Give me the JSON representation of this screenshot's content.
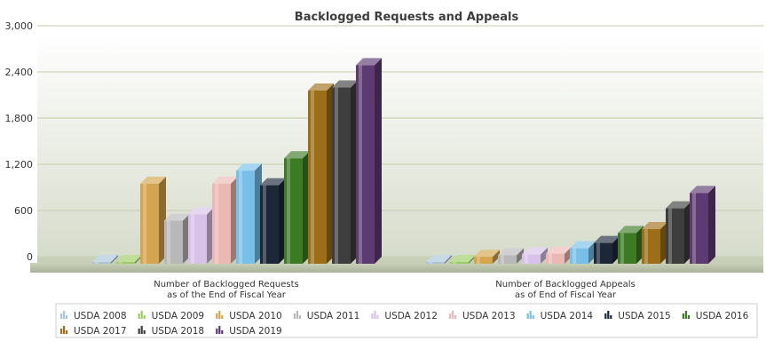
{
  "chart_data": {
    "type": "bar",
    "title": "Backlogged Requests and Appeals",
    "xlabel": "",
    "ylabel": "",
    "ylim": [
      0,
      3000
    ],
    "yticks": [
      "0",
      "600",
      "1,200",
      "1,800",
      "2,400",
      "3,000"
    ],
    "ytick_values": [
      0,
      600,
      1200,
      1800,
      2400,
      3000
    ],
    "categories": [
      [
        "Number of Backlogged Requests",
        "as of the End of Fiscal Year"
      ],
      [
        "Number of Backlogged Appeals",
        "as of End of Fiscal Year"
      ]
    ],
    "series": [
      {
        "name": "USDA 2008",
        "values": [
          0,
          0
        ],
        "color": "#a9c3d8"
      },
      {
        "name": "USDA 2009",
        "values": [
          0,
          0
        ],
        "color": "#9ccc64"
      },
      {
        "name": "USDA 2010",
        "values": [
          1040,
          90
        ],
        "color": "#d4a54e"
      },
      {
        "name": "USDA 2011",
        "values": [
          560,
          110
        ],
        "color": "#b8b8b8"
      },
      {
        "name": "USDA 2012",
        "values": [
          640,
          120
        ],
        "color": "#d8c2ea"
      },
      {
        "name": "USDA 2013",
        "values": [
          1040,
          130
        ],
        "color": "#ecb8b4"
      },
      {
        "name": "USDA 2014",
        "values": [
          1210,
          200
        ],
        "color": "#78c0e8"
      },
      {
        "name": "USDA 2015",
        "values": [
          1020,
          270
        ],
        "color": "#1c2838"
      },
      {
        "name": "USDA 2016",
        "values": [
          1370,
          400
        ],
        "color": "#3c7a24"
      },
      {
        "name": "USDA 2017",
        "values": [
          2250,
          450
        ],
        "color": "#9c6e18"
      },
      {
        "name": "USDA 2018",
        "values": [
          2290,
          720
        ],
        "color": "#3e3e3e"
      },
      {
        "name": "USDA 2019",
        "values": [
          2580,
          920
        ],
        "color": "#5e3a72"
      }
    ],
    "grid": true,
    "legend_position": "bottom"
  }
}
